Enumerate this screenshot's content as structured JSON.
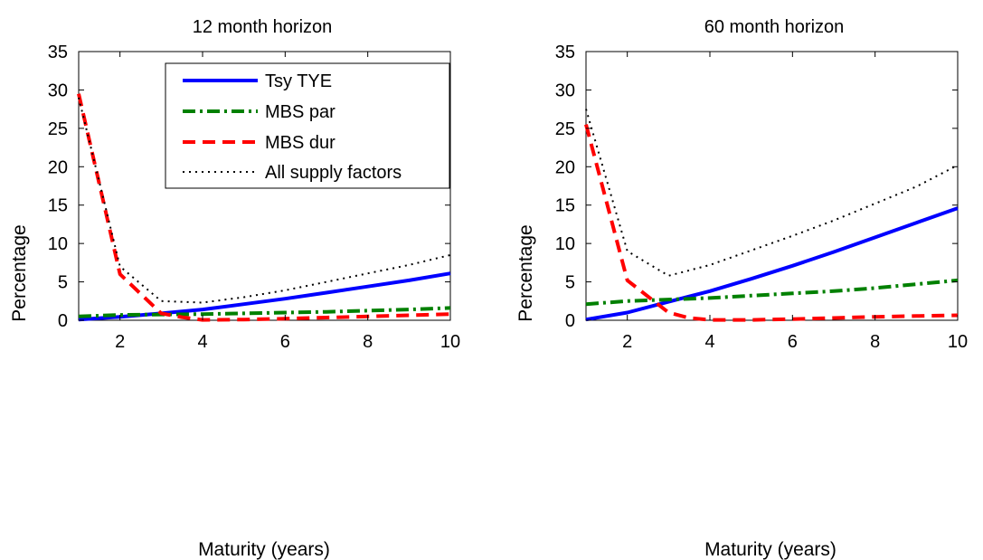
{
  "chart_data": [
    {
      "type": "line",
      "title": "12 month horizon",
      "xlabel": "Maturity (years)",
      "ylabel": "Percentage",
      "xlim": [
        1,
        10
      ],
      "ylim": [
        0,
        35
      ],
      "xticks": [
        2,
        4,
        6,
        8,
        10
      ],
      "yticks": [
        0,
        5,
        10,
        15,
        20,
        25,
        30,
        35
      ],
      "grid": false,
      "legend_placement": "top-right",
      "series": [
        {
          "name": "Tsy TYE",
          "color": "#0000ff",
          "style": "solid",
          "x": [
            1,
            2,
            3,
            4,
            5,
            6,
            7,
            8,
            9,
            10
          ],
          "y": [
            0.1,
            0.45,
            0.9,
            1.4,
            2.1,
            2.8,
            3.6,
            4.4,
            5.2,
            6.1
          ]
        },
        {
          "name": "MBS par",
          "color": "#008000",
          "style": "dashdot",
          "x": [
            1,
            2,
            3,
            4,
            5,
            6,
            7,
            8,
            9,
            10
          ],
          "y": [
            0.5,
            0.7,
            0.75,
            0.8,
            0.9,
            1.0,
            1.1,
            1.25,
            1.4,
            1.6
          ]
        },
        {
          "name": "MBS dur",
          "color": "#ff0000",
          "style": "dashed",
          "x": [
            1,
            2,
            3,
            3.5,
            4,
            5,
            6,
            7,
            8,
            9,
            10
          ],
          "y": [
            29.5,
            6.0,
            0.9,
            0.4,
            0.05,
            0.1,
            0.2,
            0.35,
            0.5,
            0.65,
            0.8
          ]
        },
        {
          "name": "All supply factors",
          "color": "#000000",
          "style": "dotted",
          "x": [
            1,
            2,
            3,
            4,
            5,
            6,
            7,
            8,
            9,
            10
          ],
          "y": [
            29.0,
            7.0,
            2.5,
            2.3,
            3.0,
            3.9,
            5.0,
            6.1,
            7.2,
            8.5
          ]
        }
      ]
    },
    {
      "type": "line",
      "title": "60 month horizon",
      "xlabel": "Maturity (years)",
      "ylabel": "Percentage",
      "xlim": [
        1,
        10
      ],
      "ylim": [
        0,
        35
      ],
      "xticks": [
        2,
        4,
        6,
        8,
        10
      ],
      "yticks": [
        0,
        5,
        10,
        15,
        20,
        25,
        30,
        35
      ],
      "grid": false,
      "series": [
        {
          "name": "Tsy TYE",
          "color": "#0000ff",
          "style": "solid",
          "x": [
            1,
            2,
            3,
            4,
            5,
            6,
            7,
            8,
            9,
            10
          ],
          "y": [
            0.1,
            1.0,
            2.4,
            3.8,
            5.4,
            7.1,
            8.9,
            10.8,
            12.7,
            14.6
          ]
        },
        {
          "name": "MBS par",
          "color": "#008000",
          "style": "dashdot",
          "x": [
            1,
            2,
            3,
            4,
            5,
            6,
            7,
            8,
            9,
            10
          ],
          "y": [
            2.1,
            2.5,
            2.7,
            2.9,
            3.2,
            3.5,
            3.8,
            4.2,
            4.7,
            5.2
          ]
        },
        {
          "name": "MBS dur",
          "color": "#ff0000",
          "style": "dashed",
          "x": [
            1,
            2,
            3,
            3.5,
            4,
            5,
            6,
            7,
            8,
            9,
            10
          ],
          "y": [
            25.5,
            5.2,
            1.0,
            0.3,
            0.05,
            0.05,
            0.15,
            0.3,
            0.45,
            0.55,
            0.65
          ]
        },
        {
          "name": "All supply factors",
          "color": "#000000",
          "style": "dotted",
          "x": [
            1,
            2,
            3,
            4,
            5,
            6,
            7,
            8,
            9,
            10
          ],
          "y": [
            27.5,
            9.0,
            5.8,
            7.2,
            9.1,
            11.0,
            13.0,
            15.2,
            17.4,
            20.2
          ]
        }
      ]
    }
  ]
}
